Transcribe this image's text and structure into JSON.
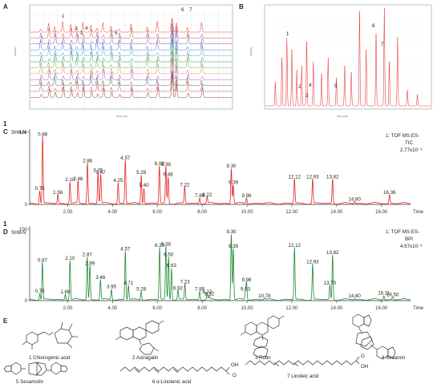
{
  "panels": {
    "A": {
      "label": "A",
      "x_axis": "Time (min)",
      "y_axis": "Intensity",
      "peak_labels": [
        "1",
        "2",
        "3",
        "4",
        "5",
        "6",
        "7"
      ]
    },
    "B": {
      "label": "B",
      "x_axis": "Time (min)",
      "y_axis": "Intensity",
      "peak_labels": [
        "1",
        "2",
        "3",
        "4",
        "5",
        "6",
        "7"
      ]
    },
    "C": {
      "label": "C",
      "corner_number": "1",
      "sample": "SH8-N",
      "mode_line1": "1: TOF MS ES-",
      "mode_line2": "TIC",
      "scale": "2.77x10⁻³",
      "x_label": "Time"
    },
    "D": {
      "label": "D",
      "corner_number": "1",
      "sample": "SH8-N",
      "mode_line1": "1: TOF MS ES-",
      "mode_line2": "BPI",
      "scale": "4.67x10⁻³",
      "x_label": "Time"
    },
    "E": {
      "label": "E"
    }
  },
  "compounds": [
    {
      "label": "1 Chlorogenic acid"
    },
    {
      "label": "2 Astragalin"
    },
    {
      "label": "3 Rutin"
    },
    {
      "label": "4 Sesamin"
    },
    {
      "label": "5 Sesamolin"
    },
    {
      "label": "6 α-Linolenic acid"
    },
    {
      "label": "7 Linoleic acid"
    }
  ],
  "chart_data": [
    {
      "panel": "C",
      "type": "line",
      "color": "#e8231f",
      "xlim": [
        0.3,
        17.3
      ],
      "ylim": [
        0,
        100
      ],
      "x_ticks": [
        "2.00",
        "4.00",
        "6.00",
        "8.00",
        "10.00",
        "12.00",
        "14.00",
        "16.00"
      ],
      "x_tick_values": [
        2,
        4,
        6,
        8,
        10,
        12,
        14,
        16
      ],
      "y_ticks": [
        "0",
        "100"
      ],
      "y_tick_values": [
        0,
        100
      ],
      "peaks": [
        {
          "t": 0.75,
          "y": 18,
          "label": "0.75"
        },
        {
          "t": 0.88,
          "y": 93,
          "label": "0.88"
        },
        {
          "t": 1.56,
          "y": 12,
          "label": "1.56"
        },
        {
          "t": 2.1,
          "y": 30,
          "label": "2.10"
        },
        {
          "t": 2.46,
          "y": 31,
          "label": "2.46"
        },
        {
          "t": 2.88,
          "y": 56,
          "label": "2.88"
        },
        {
          "t": 3.35,
          "y": 43,
          "label": "3.35"
        },
        {
          "t": 3.47,
          "y": 40,
          "label": "3.47"
        },
        {
          "t": 4.25,
          "y": 29,
          "label": "4.25"
        },
        {
          "t": 4.57,
          "y": 60,
          "label": "4.57"
        },
        {
          "t": 5.28,
          "y": 40,
          "label": "5.28"
        },
        {
          "t": 5.4,
          "y": 22,
          "label": "5.40"
        },
        {
          "t": 6.09,
          "y": 52,
          "label": "6.09"
        },
        {
          "t": 6.38,
          "y": 51,
          "label": "6.38"
        },
        {
          "t": 6.48,
          "y": 37,
          "label": "6.48"
        },
        {
          "t": 7.22,
          "y": 23,
          "label": "7.22"
        },
        {
          "t": 7.89,
          "y": 8,
          "label": "7.89"
        },
        {
          "t": 8.22,
          "y": 9,
          "label": "8.22"
        },
        {
          "t": 9.3,
          "y": 49,
          "label": "9.30"
        },
        {
          "t": 9.39,
          "y": 26,
          "label": "9.39"
        },
        {
          "t": 9.98,
          "y": 8,
          "label": "9.98"
        },
        {
          "t": 12.12,
          "y": 34,
          "label": "12.12"
        },
        {
          "t": 12.93,
          "y": 34,
          "label": "12.93"
        },
        {
          "t": 13.82,
          "y": 34,
          "label": "13.82"
        },
        {
          "t": 14.8,
          "y": 3,
          "label": "14.80"
        },
        {
          "t": 16.36,
          "y": 12,
          "label": "16.36"
        }
      ]
    },
    {
      "panel": "D",
      "type": "line",
      "color": "#1e8a2e",
      "xlim": [
        0.3,
        17.3
      ],
      "ylim": [
        0,
        100
      ],
      "x_ticks": [
        "2.00",
        "4.00",
        "6.00",
        "8.00",
        "10.00",
        "12.00",
        "14.00",
        "16.00"
      ],
      "x_tick_values": [
        2,
        4,
        6,
        8,
        10,
        12,
        14,
        16
      ],
      "y_ticks": [
        "0",
        "100"
      ],
      "y_tick_values": [
        0,
        100
      ],
      "peaks": [
        {
          "t": 0.75,
          "y": 9,
          "label": "0.75"
        },
        {
          "t": 0.87,
          "y": 52,
          "label": "0.87"
        },
        {
          "t": 1.89,
          "y": 8,
          "label": "1.89"
        },
        {
          "t": 2.1,
          "y": 55,
          "label": "2.10"
        },
        {
          "t": 2.87,
          "y": 60,
          "label": "2.87"
        },
        {
          "t": 2.99,
          "y": 48,
          "label": "2.99"
        },
        {
          "t": 3.46,
          "y": 28,
          "label": "3.46"
        },
        {
          "t": 3.95,
          "y": 15,
          "label": "3.95"
        },
        {
          "t": 4.57,
          "y": 68,
          "label": "4.57"
        },
        {
          "t": 4.71,
          "y": 20,
          "label": "4.71"
        },
        {
          "t": 5.28,
          "y": 12,
          "label": "5.28"
        },
        {
          "t": 6.1,
          "y": 73,
          "label": "6.10"
        },
        {
          "t": 6.38,
          "y": 75,
          "label": "6.38"
        },
        {
          "t": 6.5,
          "y": 60,
          "label": "6.50"
        },
        {
          "t": 6.63,
          "y": 45,
          "label": "6.63"
        },
        {
          "t": 6.92,
          "y": 13,
          "label": "6.92"
        },
        {
          "t": 7.23,
          "y": 22,
          "label": "7.23"
        },
        {
          "t": 7.89,
          "y": 12,
          "label": "7.89"
        },
        {
          "t": 8.22,
          "y": 8,
          "label": "8.22"
        },
        {
          "t": 8.32,
          "y": 5,
          "label": "8.32"
        },
        {
          "t": 9.3,
          "y": 92,
          "label": "9.30"
        },
        {
          "t": 9.39,
          "y": 72,
          "label": "9.39"
        },
        {
          "t": 9.93,
          "y": 12,
          "label": "9.93"
        },
        {
          "t": 9.98,
          "y": 25,
          "label": "9.98"
        },
        {
          "t": 10.78,
          "y": 2,
          "label": "10.78"
        },
        {
          "t": 12.12,
          "y": 73,
          "label": "12.12"
        },
        {
          "t": 12.93,
          "y": 50,
          "label": "12.93"
        },
        {
          "t": 13.7,
          "y": 20,
          "label": "13.70"
        },
        {
          "t": 13.82,
          "y": 63,
          "label": "13.82"
        },
        {
          "t": 14.8,
          "y": 2,
          "label": "14.80"
        },
        {
          "t": 16.11,
          "y": 6,
          "label": "16.11"
        },
        {
          "t": 16.5,
          "y": 4,
          "label": "16.50"
        }
      ]
    }
  ],
  "colors": {
    "tic_red": "#e8231f",
    "bpi_green": "#1e8a2e",
    "blue": "#1f2a8a"
  }
}
